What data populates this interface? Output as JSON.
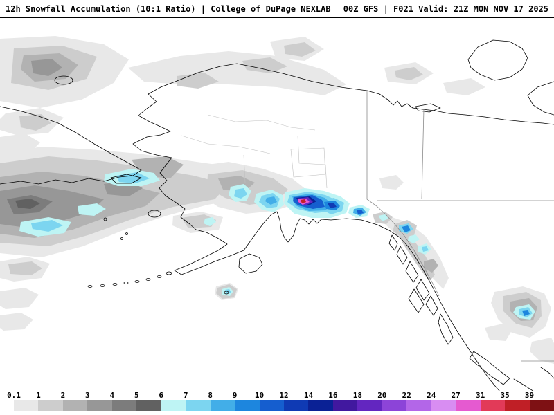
{
  "header": {
    "left": "12h Snowfall Accumulation (10:1 Ratio) | College of DuPage NEXLAB",
    "right": "00Z GFS | F021 Valid: 21Z MON NOV 17 2025"
  },
  "colorbar": {
    "tick_labels": [
      "0.1",
      "1",
      "2",
      "3",
      "4",
      "5",
      "6",
      "7",
      "8",
      "9",
      "10",
      "12",
      "14",
      "16",
      "18",
      "20",
      "22",
      "24",
      "27",
      "31",
      "35",
      "39"
    ],
    "colors": [
      "#e8e8e8",
      "#cdcdcd",
      "#b2b2b2",
      "#979797",
      "#7c7c7c",
      "#616161",
      "#bef4f4",
      "#7cd5f0",
      "#42aee8",
      "#1d86de",
      "#155ecf",
      "#0f3ab4",
      "#0a2195",
      "#41189f",
      "#6326c0",
      "#8c44d8",
      "#b366e8",
      "#d88df2",
      "#e55ad0",
      "#e23a58",
      "#c01f26",
      "#7e1114"
    ]
  },
  "chart_data": {
    "type": "heatmap",
    "title": "12h Snowfall Accumulation (10:1 Ratio)",
    "source": "College of DuPage NEXLAB",
    "model": "GFS",
    "run": "00Z",
    "forecast_hour": "F021",
    "valid": "21Z MON NOV 17 2025",
    "units": "inches (10:1 snow ratio)",
    "legend_position": "bottom",
    "region_shown": "Alaska, Bering Sea, Gulf of Alaska, western Canada",
    "scale_bins_lower_in": [
      0.1,
      1,
      2,
      3,
      4,
      5,
      6,
      7,
      8,
      9,
      10,
      12,
      14,
      16,
      18,
      20,
      22,
      24,
      27,
      31,
      35,
      39
    ],
    "scale_colors": [
      "#e8e8e8",
      "#cdcdcd",
      "#b2b2b2",
      "#979797",
      "#7c7c7c",
      "#616161",
      "#bef4f4",
      "#7cd5f0",
      "#42aee8",
      "#1d86de",
      "#155ecf",
      "#0f3ab4",
      "#0a2195",
      "#41189f",
      "#6326c0",
      "#8c44d8",
      "#b366e8",
      "#d88df2",
      "#e55ad0",
      "#e23a58",
      "#c01f26",
      "#7e1114"
    ],
    "regions": [
      {
        "area": "Prince William Sound / Southcentral Alaska coast",
        "approx_max_in": "20-31"
      },
      {
        "area": "Eastern Gulf of Alaska coastal blob",
        "approx_max_in": "10-14"
      },
      {
        "area": "Chukotka / Bering Strait / St. Lawrence Island",
        "approx_max_in": "6-8"
      },
      {
        "area": "Western Bering Sea / Siberia band",
        "approx_max_in": "3-6"
      },
      {
        "area": "Alaska Range / Susitna Valley spots",
        "approx_max_in": "7-10"
      },
      {
        "area": "Southeast Alaska panhandle coast",
        "approx_max_in": "8-12"
      },
      {
        "area": "British Columbia Coast Mountains",
        "approx_max_in": "10-14"
      },
      {
        "area": "Kodiak / Alaska Peninsula island spot",
        "approx_max_in": "6-8"
      },
      {
        "area": "North Slope and Arctic coast patches",
        "approx_max_in": "0.1-2"
      }
    ]
  }
}
